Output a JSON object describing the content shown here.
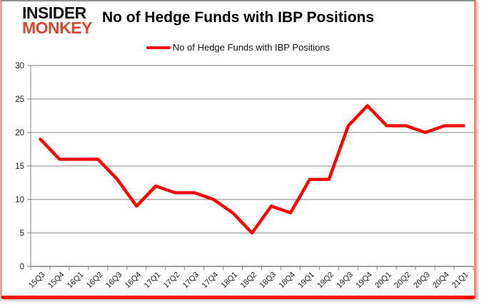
{
  "brand": {
    "line1": "INSIDER",
    "line2": "MONKEY"
  },
  "header": {
    "title": "No of Hedge Funds with IBP Positions"
  },
  "legend": {
    "label": "No of Hedge Funds with IBP Positions"
  },
  "colors": {
    "line": "#fe0000",
    "grid": "#808080",
    "axis": "#808080",
    "tick_label": "#1a1a1a",
    "logo_red": "#d9472e",
    "frame_bottom": "#fa0400"
  },
  "chart_data": {
    "type": "line",
    "title": "No of Hedge Funds with IBP Positions",
    "categories": [
      "15Q3",
      "15Q4",
      "16Q1",
      "16Q2",
      "16Q3",
      "16Q4",
      "17Q1",
      "17Q2",
      "17Q3",
      "17Q4",
      "18Q1",
      "18Q2",
      "18Q3",
      "18Q4",
      "19Q1",
      "19Q2",
      "19Q3",
      "19Q4",
      "20Q1",
      "20Q2",
      "20Q3",
      "20Q4",
      "21Q1"
    ],
    "series": [
      {
        "name": "No of Hedge Funds with IBP Positions",
        "values": [
          19,
          16,
          16,
          16,
          13,
          9,
          12,
          11,
          11,
          10,
          8,
          5,
          9,
          8,
          13,
          13,
          21,
          24,
          21,
          21,
          20,
          21,
          21
        ]
      }
    ],
    "xlabel": "",
    "ylabel": "",
    "ylim": [
      0,
      30
    ],
    "y_ticks": [
      0,
      5,
      10,
      15,
      20,
      25,
      30
    ],
    "grid": "horizontal",
    "legend_position": "top-center",
    "x_label_rotation_deg": -45
  }
}
